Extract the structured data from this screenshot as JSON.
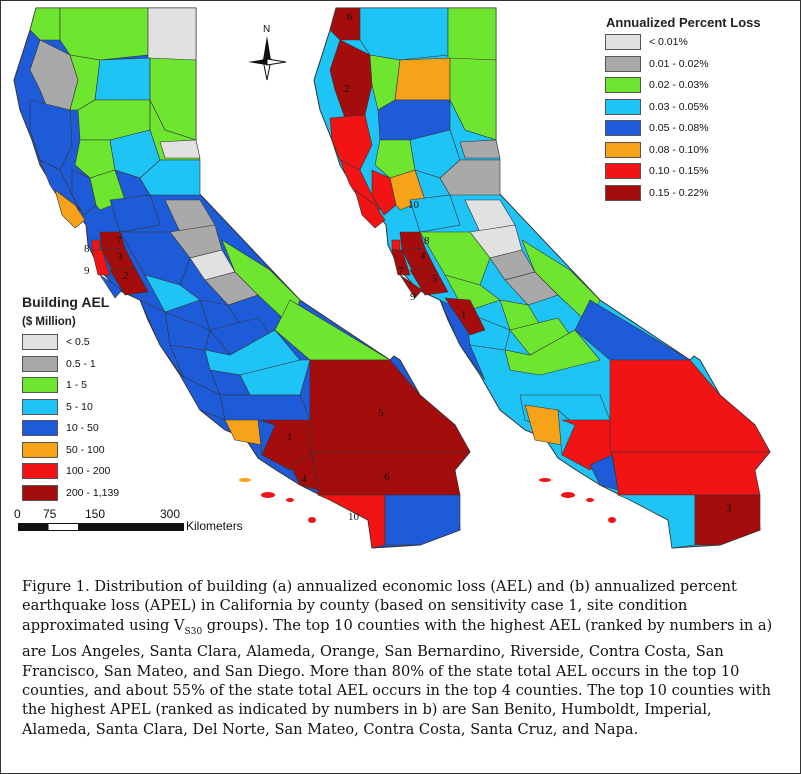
{
  "map_a": {
    "legend": {
      "title": "Building AEL",
      "subtitle": "($ Million)",
      "classes": [
        {
          "label": "< 0.5",
          "color": "#e1e1e1"
        },
        {
          "label": "0.5 - 1",
          "color": "#a9a9a9"
        },
        {
          "label": "1 - 5",
          "color": "#6ee62f"
        },
        {
          "label": "5 - 10",
          "color": "#1ec4f6"
        },
        {
          "label": "10 - 50",
          "color": "#1e5bd8"
        },
        {
          "label": "50 - 100",
          "color": "#f7a319"
        },
        {
          "label": "100 - 200",
          "color": "#f21414"
        },
        {
          "label": "200 - 1,139",
          "color": "#a50d0d"
        }
      ]
    },
    "ranks": [
      "1",
      "2",
      "3",
      "4",
      "5",
      "6",
      "7",
      "8",
      "9",
      "10"
    ]
  },
  "map_b": {
    "legend": {
      "title": "Annualized Percent Loss",
      "classes": [
        {
          "label": "< 0.01%",
          "color": "#e1e1e1"
        },
        {
          "label": "0.01 - 0.02%",
          "color": "#a9a9a9"
        },
        {
          "label": "0.02 - 0.03%",
          "color": "#6ee62f"
        },
        {
          "label": "0.03 - 0.05%",
          "color": "#1ec4f6"
        },
        {
          "label": "0.05 - 0.08%",
          "color": "#1e5bd8"
        },
        {
          "label": "0.08 - 0.10%",
          "color": "#f7a319"
        },
        {
          "label": "0.10 - 0.15%",
          "color": "#f21414"
        },
        {
          "label": "0.15 - 0.22%",
          "color": "#a50d0d"
        }
      ]
    },
    "ranks": [
      "1",
      "2",
      "3",
      "4",
      "5",
      "6",
      "7",
      "8",
      "9",
      "10"
    ]
  },
  "north_arrow": {
    "label": "N"
  },
  "scale_bar": {
    "ticks": [
      "0",
      "75",
      "150",
      "300"
    ],
    "unit": "Kilometers"
  },
  "caption": "Figure 1. Distribution of building (a) annualized economic loss (AEL) and (b) annualized percent earthquake loss (APEL) in California by county (based on sensitivity case 1, site condition approximated using V",
  "caption_sub": "S30",
  "caption_rest": " groups). The top 10 counties with the highest AEL (ranked by numbers in a) are Los Angeles, Santa Clara, Alameda, Orange, San Bernardino, Riverside, Contra Costa, San Francisco, San Mateo, and San Diego. More than 80% of the state total AEL occurs in the top 10 counties, and about 55% of the state total AEL occurs in the top 4 counties. The top 10 counties with the highest APEL (ranked as indicated by numbers in b) are San Benito, Humboldt, Imperial, Alameda, Santa Clara, Del Norte, San Mateo, Contra Costa, Santa Cruz, and Napa."
}
